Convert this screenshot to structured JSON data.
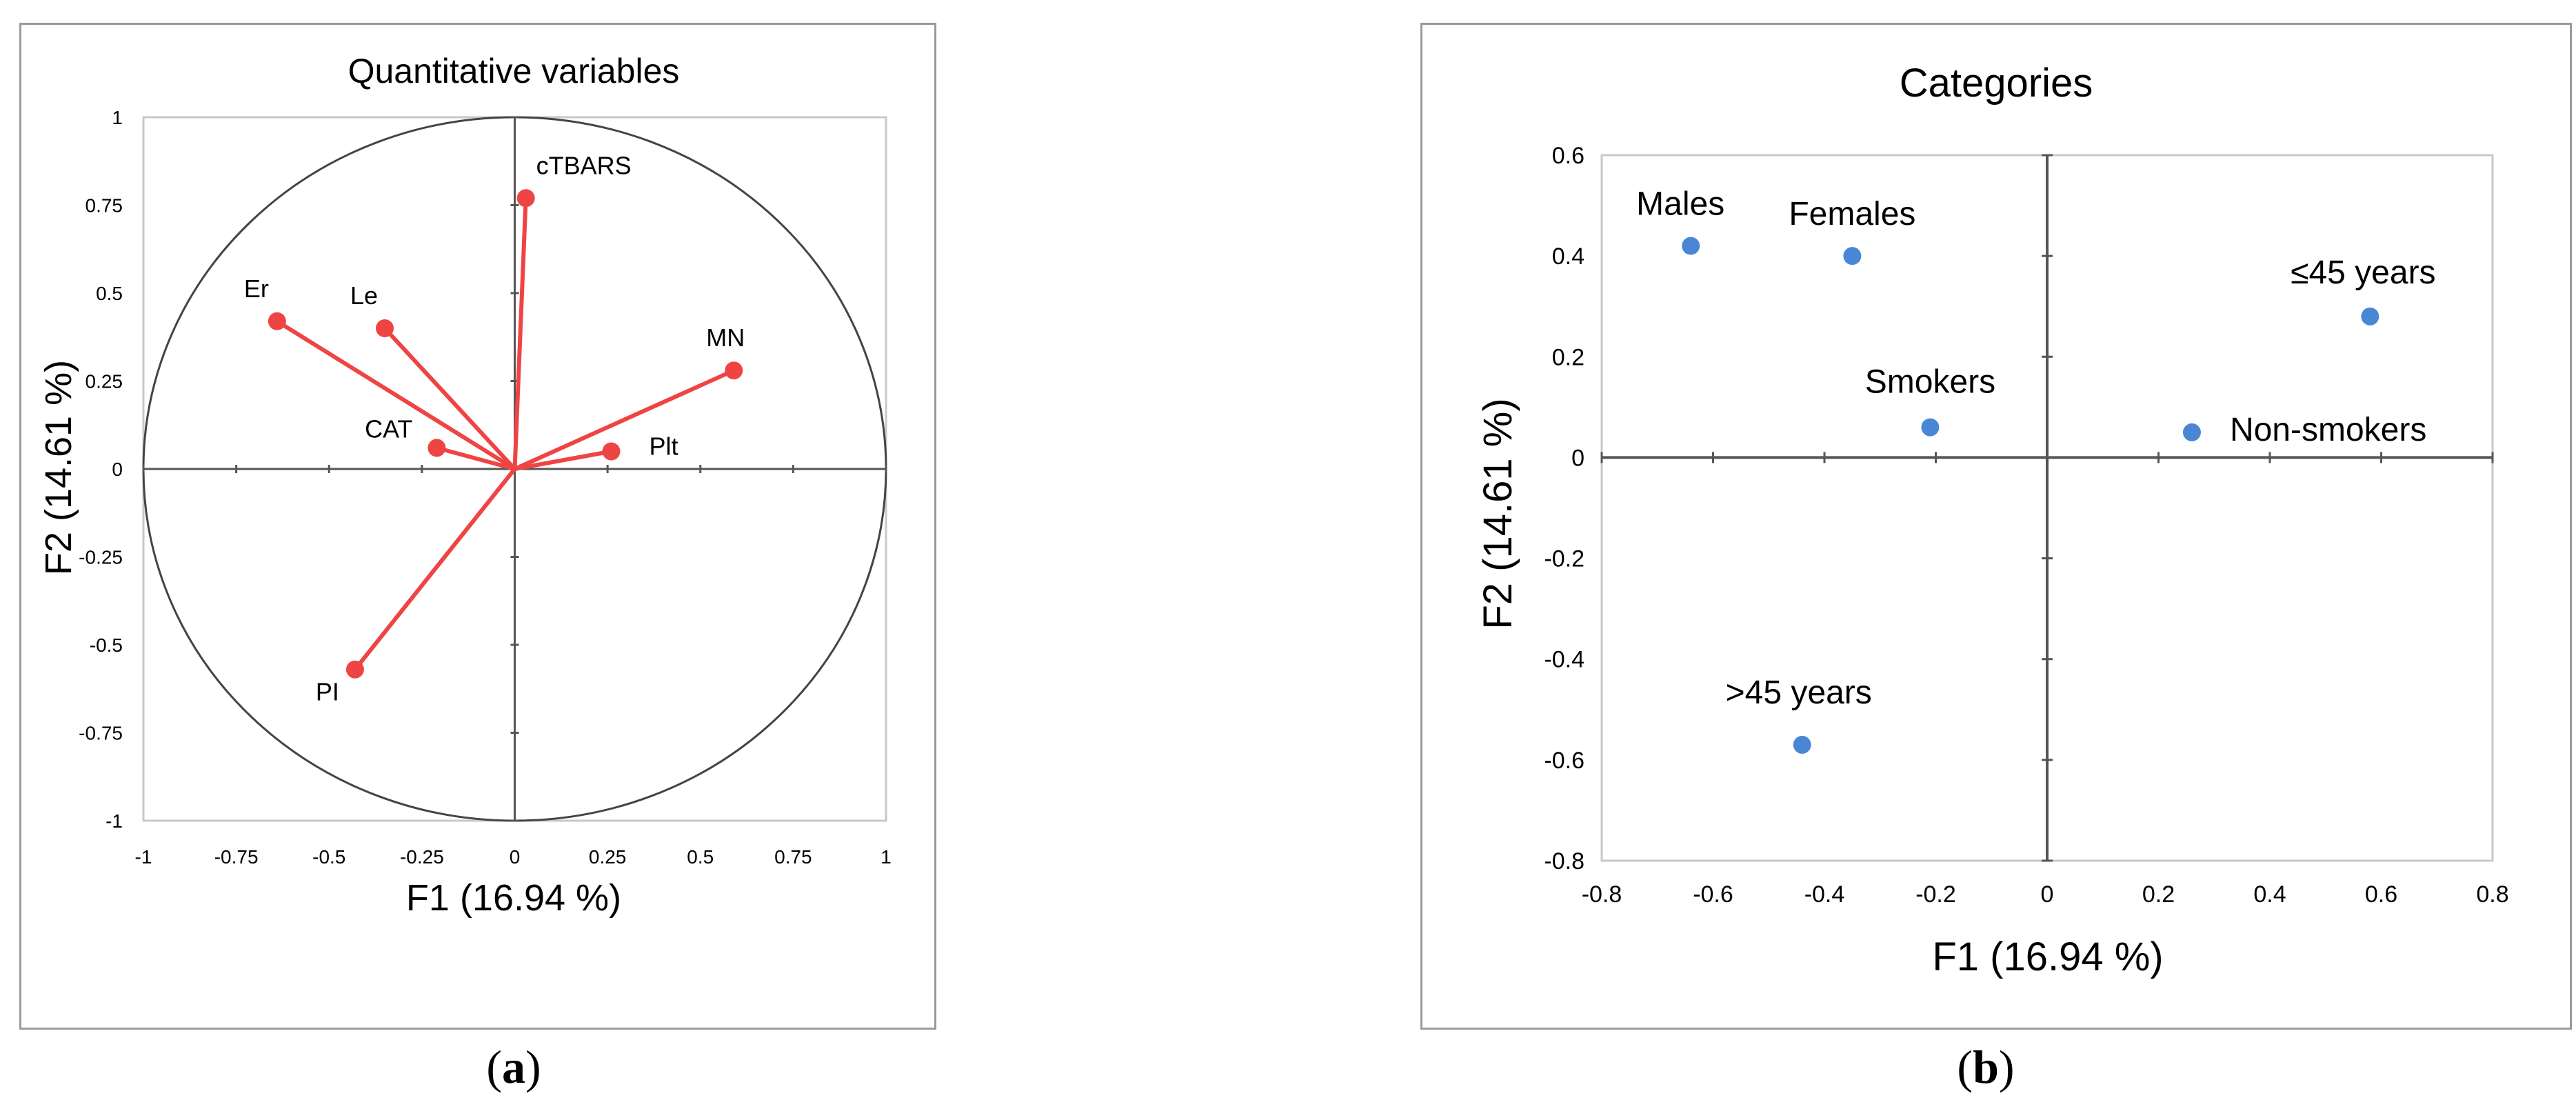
{
  "panels": [
    {
      "label_open": "(",
      "label_letter": "a",
      "label_close": ")"
    },
    {
      "label_open": "(",
      "label_letter": "b",
      "label_close": ")"
    }
  ],
  "chart_data": [
    {
      "type": "scatter",
      "subtype": "correlation-circle",
      "title": "Quantitative variables",
      "xlabel": "F1 (16.94 %)",
      "ylabel": "F2 (14.61 %)",
      "xlim": [
        -1,
        1
      ],
      "ylim": [
        -1,
        1
      ],
      "xticks": [
        "-1",
        "-0.75",
        "-0.5",
        "-0.25",
        "0",
        "0.25",
        "0.5",
        "0.75",
        "1"
      ],
      "yticks": [
        "1",
        "0.75",
        "0.5",
        "0.25",
        "0",
        "-0.25",
        "-0.5",
        "-0.75",
        "-1"
      ],
      "unit_circle": true,
      "vectors_from_origin": true,
      "point_color": "#ef4444",
      "points": [
        {
          "label": "cTBARS",
          "x": 0.03,
          "y": 0.77
        },
        {
          "label": "Er",
          "x": -0.64,
          "y": 0.42
        },
        {
          "label": "Le",
          "x": -0.35,
          "y": 0.4
        },
        {
          "label": "MN",
          "x": 0.59,
          "y": 0.28
        },
        {
          "label": "CAT",
          "x": -0.21,
          "y": 0.06
        },
        {
          "label": "Plt",
          "x": 0.26,
          "y": 0.05
        },
        {
          "label": "PI",
          "x": -0.43,
          "y": -0.57
        }
      ]
    },
    {
      "type": "scatter",
      "title": "Categories",
      "xlabel": "F1 (16.94 %)",
      "ylabel": "F2 (14.61 %)",
      "xlim": [
        -0.8,
        0.8
      ],
      "ylim": [
        -0.8,
        0.6
      ],
      "xticks": [
        "-0.8",
        "-0.6",
        "-0.4",
        "-0.2",
        "0",
        "0.2",
        "0.4",
        "0.6",
        "0.8"
      ],
      "yticks": [
        "0.6",
        "0.4",
        "0.2",
        "0",
        "-0.2",
        "-0.4",
        "-0.6",
        "-0.8"
      ],
      "point_color": "#4a86d6",
      "points": [
        {
          "label": "Males",
          "x": -0.64,
          "y": 0.42
        },
        {
          "label": "Females",
          "x": -0.35,
          "y": 0.4
        },
        {
          "label": "≤45 years",
          "x": 0.58,
          "y": 0.28
        },
        {
          "label": "Smokers",
          "x": -0.21,
          "y": 0.06
        },
        {
          "label": "Non-smokers",
          "x": 0.26,
          "y": 0.05
        },
        {
          "label": ">45 years",
          "x": -0.44,
          "y": -0.57
        }
      ]
    }
  ]
}
